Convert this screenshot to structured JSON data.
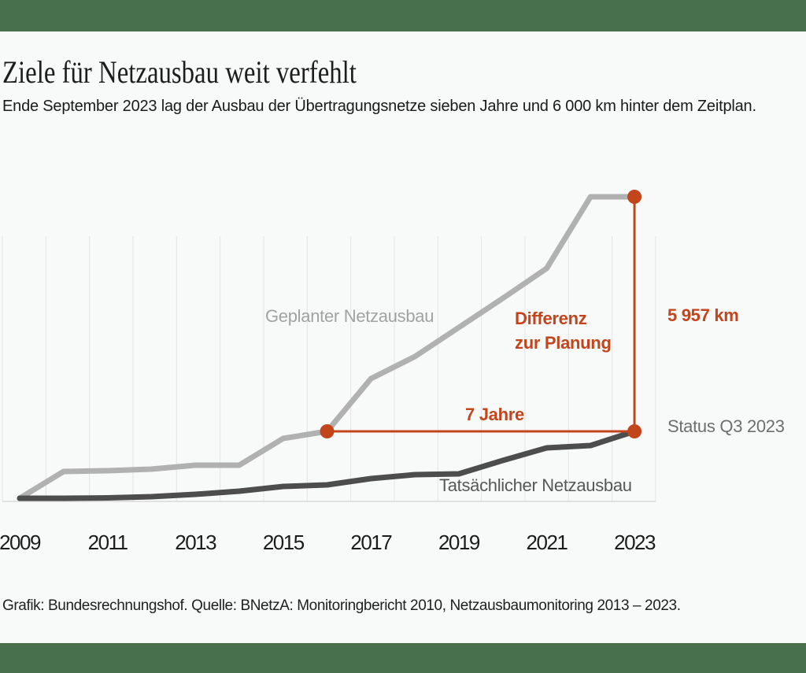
{
  "theme": {
    "background": "#f8f9f9",
    "accent_green": "#49704d",
    "highlight_red": "#c3451b",
    "planned_gray": "#b1b1b1",
    "actual_dark": "#4d4d4d",
    "planned_label_gray": "#a2a2a2",
    "actual_label_gray": "#575757",
    "status_gray": "#6e6e6e",
    "gridline_gray": "#e4e4e4",
    "baseline_gray": "#d9d9d9",
    "text_dark": "#1d1d1d"
  },
  "header": {
    "title": "Ziele für Netzausbau weit verfehlt",
    "subtitle": "Ende September 2023 lag der Ausbau der Übertragungsnetze sieben Jahre und 6 000 km hinter dem Zeitplan."
  },
  "chart_data": {
    "type": "line",
    "unit": "km",
    "y_axis_visible": false,
    "values_are_estimates": true,
    "ylim": [
      0,
      8100
    ],
    "grid": "vertical-only",
    "x": [
      2009,
      2010,
      2011,
      2012,
      2013,
      2014,
      2015,
      2016,
      2017,
      2018,
      2019,
      2020,
      2021,
      2022,
      2023
    ],
    "xticks": [
      "2009",
      "2011",
      "2013",
      "2015",
      "2017",
      "2019",
      "2021",
      "2023"
    ],
    "series": [
      {
        "name": "Geplanter Netzausbau",
        "values": [
          80,
          760,
          780,
          820,
          920,
          920,
          1600,
          1780,
          3120,
          3680,
          4420,
          5160,
          5920,
          7740,
          7740
        ]
      },
      {
        "name": "Tatsächlicher Netzausbau",
        "values": [
          80,
          80,
          90,
          120,
          180,
          260,
          380,
          420,
          580,
          680,
          700,
          1040,
          1360,
          1420,
          1780
        ]
      }
    ],
    "annotations": {
      "difference_label_line1": "Differenz",
      "difference_label_line2": "zur Planung",
      "difference_value": "5 957 km",
      "time_lag": "7 Jahre",
      "status": "Status Q3 2023",
      "lag_from_year": 2016,
      "lag_to_year": 2023
    }
  },
  "footer": {
    "credit": "Grafik: Bundesrechnungshof. Quelle: BNetzA: Monitoringbericht 2010, Netzausbaumonitoring 2013 – 2023."
  }
}
